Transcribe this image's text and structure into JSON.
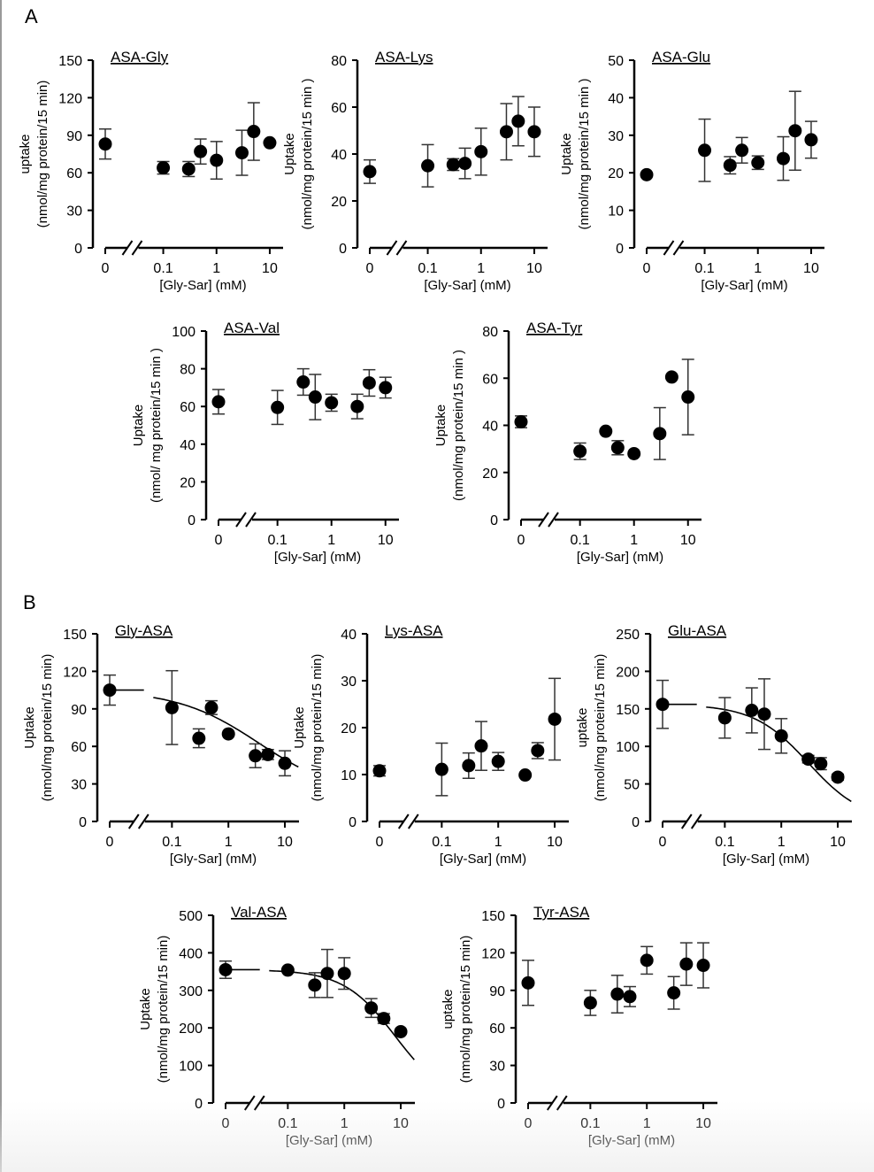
{
  "panel_labels": {
    "A": "A",
    "B": "B"
  },
  "chart_data": [
    {
      "id": "asa-gly",
      "panel": "A",
      "type": "scatter",
      "title": "ASA-Gly",
      "ylabel": "uptake",
      "ylabel2": "(nmol/mg protein/15 min)",
      "xlabel": "[Gly-Sar] (mM)",
      "xscale": "broken-log",
      "xticks": [
        "0",
        "0.1",
        "1",
        "10"
      ],
      "ylim": [
        0,
        150
      ],
      "yticks": [
        0,
        30,
        60,
        90,
        120,
        150
      ],
      "points": [
        {
          "x": 0,
          "y": 83,
          "err": 12
        },
        {
          "x": 0.1,
          "y": 64,
          "err": 5
        },
        {
          "x": 0.3,
          "y": 63,
          "err": 6
        },
        {
          "x": 0.5,
          "y": 77,
          "err": 10
        },
        {
          "x": 1,
          "y": 70,
          "err": 15
        },
        {
          "x": 3,
          "y": 76,
          "err": 18
        },
        {
          "x": 5,
          "y": 93,
          "err": 23
        },
        {
          "x": 10,
          "y": 84,
          "err": 0
        }
      ],
      "fit": null
    },
    {
      "id": "asa-lys",
      "panel": "A",
      "type": "scatter",
      "title": "ASA-Lys",
      "ylabel": "Uptake",
      "ylabel2": "(nmol/mg protein/15 min )",
      "xlabel": "[Gly-Sar] (mM)",
      "xscale": "broken-log",
      "xticks": [
        "0",
        "0.1",
        "1",
        "10"
      ],
      "ylim": [
        0,
        80
      ],
      "yticks": [
        0,
        20,
        40,
        60,
        80
      ],
      "points": [
        {
          "x": 0,
          "y": 32.5,
          "err": 5
        },
        {
          "x": 0.1,
          "y": 35,
          "err": 9
        },
        {
          "x": 0.3,
          "y": 35.5,
          "err": 2.5
        },
        {
          "x": 0.5,
          "y": 36,
          "err": 6.5
        },
        {
          "x": 1,
          "y": 41,
          "err": 10
        },
        {
          "x": 3,
          "y": 49.5,
          "err": 12
        },
        {
          "x": 5,
          "y": 54,
          "err": 10.5
        },
        {
          "x": 10,
          "y": 49.5,
          "err": 10.5
        }
      ],
      "fit": null
    },
    {
      "id": "asa-glu",
      "panel": "A",
      "type": "scatter",
      "title": "ASA-Glu",
      "ylabel": "Uptake",
      "ylabel2": "(nmol/mg protein/15 min )",
      "xlabel": "[Gly-Sar] (mM)",
      "xscale": "broken-log",
      "xticks": [
        "0",
        "0.1",
        "1",
        "10"
      ],
      "ylim": [
        0,
        50
      ],
      "yticks": [
        0,
        10,
        20,
        30,
        40,
        50
      ],
      "points": [
        {
          "x": 0,
          "y": 19.5,
          "err": 0
        },
        {
          "x": 0.1,
          "y": 26,
          "err": 8.3
        },
        {
          "x": 0.3,
          "y": 22,
          "err": 2.3
        },
        {
          "x": 0.5,
          "y": 26,
          "err": 3.4
        },
        {
          "x": 1,
          "y": 22.7,
          "err": 1.8
        },
        {
          "x": 3,
          "y": 23.8,
          "err": 5.8
        },
        {
          "x": 5,
          "y": 31.2,
          "err": 10.5
        },
        {
          "x": 10,
          "y": 28.8,
          "err": 4.9
        }
      ],
      "fit": null
    },
    {
      "id": "asa-val",
      "panel": "A",
      "type": "scatter",
      "title": "ASA-Val",
      "ylabel": "Uptake",
      "ylabel2": "(nmol/ mg protein/15 min )",
      "xlabel": "[Gly-Sar] (mM)",
      "xscale": "broken-log",
      "xticks": [
        "0",
        "0.1",
        "1",
        "10"
      ],
      "ylim": [
        0,
        100
      ],
      "yticks": [
        0,
        20,
        40,
        60,
        80,
        100
      ],
      "points": [
        {
          "x": 0,
          "y": 62.5,
          "err": 6.5
        },
        {
          "x": 0.1,
          "y": 59.5,
          "err": 9
        },
        {
          "x": 0.3,
          "y": 73,
          "err": 7
        },
        {
          "x": 0.5,
          "y": 65,
          "err": 12
        },
        {
          "x": 1,
          "y": 62,
          "err": 4.5
        },
        {
          "x": 3,
          "y": 60,
          "err": 6.5
        },
        {
          "x": 5,
          "y": 72.5,
          "err": 7
        },
        {
          "x": 10,
          "y": 70,
          "err": 5.5
        }
      ],
      "fit": null
    },
    {
      "id": "asa-tyr",
      "panel": "A",
      "type": "scatter",
      "title": "ASA-Tyr",
      "ylabel": "Uptake",
      "ylabel2": "(nmol/mg protein/15 min )",
      "xlabel": "[Gly-Sar] (mM)",
      "xscale": "broken-log",
      "xticks": [
        "0",
        "0.1",
        "1",
        "10"
      ],
      "ylim": [
        0,
        80
      ],
      "yticks": [
        0,
        20,
        40,
        60,
        80
      ],
      "points": [
        {
          "x": 0,
          "y": 41.5,
          "err": 2.5
        },
        {
          "x": 0.1,
          "y": 29,
          "err": 3.5
        },
        {
          "x": 0.3,
          "y": 37.5,
          "err": 0
        },
        {
          "x": 0.5,
          "y": 30.5,
          "err": 3
        },
        {
          "x": 1,
          "y": 28,
          "err": 0
        },
        {
          "x": 3,
          "y": 36.5,
          "err": 11
        },
        {
          "x": 5,
          "y": 60.5,
          "err": 0
        },
        {
          "x": 10,
          "y": 52,
          "err": 16
        }
      ],
      "fit": null
    },
    {
      "id": "gly-asa",
      "panel": "B",
      "type": "scatter",
      "title": "Gly-ASA",
      "ylabel": "Uptake",
      "ylabel2": "(nmol/mg protein/15 min)",
      "xlabel": "[Gly-Sar] (mM)",
      "xscale": "broken-log",
      "xticks": [
        "0",
        "0.1",
        "1",
        "10"
      ],
      "ylim": [
        0,
        150
      ],
      "yticks": [
        0,
        30,
        60,
        90,
        120,
        150
      ],
      "points": [
        {
          "x": 0,
          "y": 105,
          "err": 12
        },
        {
          "x": 0.1,
          "y": 91,
          "err": 29.5
        },
        {
          "x": 0.3,
          "y": 66.5,
          "err": 7.5
        },
        {
          "x": 0.5,
          "y": 91,
          "err": 5.5
        },
        {
          "x": 1,
          "y": 70,
          "err": 0
        },
        {
          "x": 3,
          "y": 52.5,
          "err": 9.5
        },
        {
          "x": 5,
          "y": 53.5,
          "err": 4
        },
        {
          "x": 10,
          "y": 46.5,
          "err": 10
        }
      ],
      "fit": {
        "top": 105,
        "ic50": 3.5,
        "bottom": 20,
        "hill": 0.6
      }
    },
    {
      "id": "lys-asa",
      "panel": "B",
      "type": "scatter",
      "title": "Lys-ASA",
      "ylabel": "Uptake",
      "ylabel2": "(nmol/mg protein/15 min)",
      "xlabel": "[Gly-Sar] (mM)",
      "xscale": "broken-log",
      "xticks": [
        "0",
        "0.1",
        "1",
        "10"
      ],
      "ylim": [
        0,
        40
      ],
      "yticks": [
        0,
        10,
        20,
        30,
        40
      ],
      "points": [
        {
          "x": 0,
          "y": 10.8,
          "err": 1.1
        },
        {
          "x": 0.1,
          "y": 11.1,
          "err": 5.6
        },
        {
          "x": 0.3,
          "y": 11.9,
          "err": 2.7
        },
        {
          "x": 0.5,
          "y": 16.1,
          "err": 5.2
        },
        {
          "x": 1,
          "y": 12.8,
          "err": 1.9
        },
        {
          "x": 3,
          "y": 9.9,
          "err": 0
        },
        {
          "x": 5,
          "y": 15.1,
          "err": 1.7
        },
        {
          "x": 10,
          "y": 21.8,
          "err": 8.7
        }
      ],
      "fit": null
    },
    {
      "id": "glu-asa",
      "panel": "B",
      "type": "scatter",
      "title": "Glu-ASA",
      "ylabel": "uptake",
      "ylabel2": "(nmol/mg protein/15 min)",
      "xlabel": "[Gly-Sar] (mM)",
      "xscale": "broken-log",
      "xticks": [
        "0",
        "0.1",
        "1",
        "10"
      ],
      "ylim": [
        0,
        250
      ],
      "yticks": [
        0,
        50,
        100,
        150,
        200,
        250
      ],
      "points": [
        {
          "x": 0,
          "y": 156,
          "err": 32
        },
        {
          "x": 0.1,
          "y": 138,
          "err": 27
        },
        {
          "x": 0.3,
          "y": 148,
          "err": 30
        },
        {
          "x": 0.5,
          "y": 143,
          "err": 47
        },
        {
          "x": 1,
          "y": 114,
          "err": 23
        },
        {
          "x": 3,
          "y": 83,
          "err": 5
        },
        {
          "x": 5,
          "y": 77,
          "err": 8
        },
        {
          "x": 10,
          "y": 59,
          "err": 4
        }
      ],
      "fit": {
        "top": 156,
        "ic50": 3.0,
        "bottom": 0,
        "hill": 0.9
      }
    },
    {
      "id": "val-asa",
      "panel": "B",
      "type": "scatter",
      "title": "Val-ASA",
      "ylabel": "Uptake",
      "ylabel2": "(nmol/mg protein/15 min)",
      "xlabel": "[Gly-Sar] (mM)",
      "xscale": "broken-log",
      "xticks": [
        "0",
        "0.1",
        "1",
        "10"
      ],
      "ylim": [
        0,
        500
      ],
      "yticks": [
        0,
        100,
        200,
        300,
        400,
        500
      ],
      "points": [
        {
          "x": 0,
          "y": 355,
          "err": 23
        },
        {
          "x": 0.1,
          "y": 354,
          "err": 0
        },
        {
          "x": 0.3,
          "y": 314,
          "err": 33
        },
        {
          "x": 0.5,
          "y": 345,
          "err": 64
        },
        {
          "x": 1,
          "y": 345,
          "err": 42
        },
        {
          "x": 3,
          "y": 253,
          "err": 25
        },
        {
          "x": 5,
          "y": 225,
          "err": 13
        },
        {
          "x": 10,
          "y": 190,
          "err": 0
        }
      ],
      "fit": {
        "top": 355,
        "ic50": 8.0,
        "bottom": 0,
        "hill": 0.95
      }
    },
    {
      "id": "tyr-asa",
      "panel": "B",
      "type": "scatter",
      "title": "Tyr-ASA",
      "ylabel": "uptake",
      "ylabel2": "(nmol/mg protein/15 min)",
      "xlabel": "[Gly-Sar] (mM)",
      "xscale": "broken-log",
      "xticks": [
        "0",
        "0.1",
        "1",
        "10"
      ],
      "ylim": [
        0,
        150
      ],
      "yticks": [
        0,
        30,
        60,
        90,
        120,
        150
      ],
      "points": [
        {
          "x": 0,
          "y": 96,
          "err": 18
        },
        {
          "x": 0.1,
          "y": 80,
          "err": 10
        },
        {
          "x": 0.3,
          "y": 87,
          "err": 15
        },
        {
          "x": 0.5,
          "y": 85,
          "err": 8
        },
        {
          "x": 1,
          "y": 114,
          "err": 11
        },
        {
          "x": 3,
          "y": 88,
          "err": 13
        },
        {
          "x": 5,
          "y": 111,
          "err": 17
        },
        {
          "x": 10,
          "y": 110,
          "err": 18
        }
      ],
      "fit": null
    }
  ]
}
